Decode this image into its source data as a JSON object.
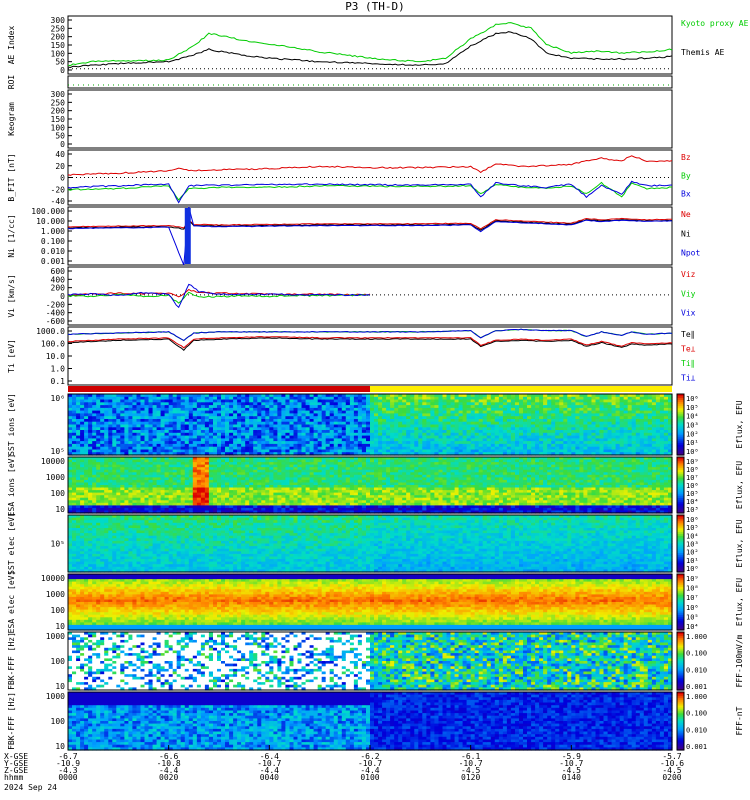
{
  "chart_data": {
    "type": "line",
    "title": "P3 (TH-D)",
    "x_axis": {
      "row_labels": [
        "X-GSE",
        "Y-GSE",
        "Z-GSE",
        "hhmm",
        "2024 Sep 24"
      ],
      "ticks": [
        {
          "x": "-6.7",
          "y": "-10.9",
          "z": "-4.3",
          "t": "0000"
        },
        {
          "x": "-6.6",
          "y": "-10.8",
          "z": "-4.4",
          "t": "0020"
        },
        {
          "x": "-6.4",
          "y": "-10.7",
          "z": "-4.4",
          "t": "0040"
        },
        {
          "x": "-6.2",
          "y": "-10.7",
          "z": "-4.4",
          "t": "0100"
        },
        {
          "x": "-6.1",
          "y": "-10.7",
          "z": "-4.5",
          "t": "0120"
        },
        {
          "x": "-5.9",
          "y": "-10.7",
          "z": "-4.5",
          "t": "0140"
        },
        {
          "x": "-5.7",
          "y": "-10.6",
          "z": "-4.5",
          "t": "0200"
        }
      ]
    },
    "panels": [
      {
        "id": "ae",
        "ylabel": "AE Index",
        "yticks": [
          "300",
          "250",
          "200",
          "150",
          "100",
          "50",
          "0"
        ],
        "ylim": [
          -30,
          300
        ],
        "series": [
          {
            "name": "Kyoto proxy AE",
            "color": "#00cc00",
            "t": [
              0,
              5,
              10,
              15,
              20,
              25,
              28,
              32,
              35,
              40,
              45,
              50,
              55,
              60,
              65,
              70,
              75,
              80,
              85,
              88,
              92,
              95,
              100,
              105,
              110,
              115,
              120
            ],
            "values": [
              20,
              40,
              45,
              45,
              50,
              130,
              200,
              180,
              160,
              140,
              120,
              95,
              80,
              60,
              50,
              40,
              60,
              170,
              250,
              260,
              230,
              140,
              90,
              100,
              90,
              95,
              110
            ]
          },
          {
            "name": "Themis AE",
            "color": "#000000",
            "t": [
              0,
              5,
              10,
              15,
              20,
              25,
              28,
              32,
              35,
              40,
              45,
              50,
              55,
              60,
              65,
              70,
              75,
              80,
              85,
              88,
              92,
              95,
              100,
              105,
              110,
              115,
              120
            ],
            "values": [
              10,
              20,
              30,
              35,
              40,
              80,
              110,
              90,
              75,
              60,
              50,
              40,
              35,
              30,
              25,
              20,
              30,
              130,
              200,
              210,
              170,
              90,
              60,
              55,
              55,
              60,
              70
            ]
          }
        ]
      },
      {
        "id": "roi",
        "ylabel": "ROI"
      },
      {
        "id": "keogram",
        "ylabel": "Keogram",
        "yticks": [
          "300",
          "250",
          "200",
          "150",
          "100",
          "50",
          "0"
        ]
      },
      {
        "id": "bfield",
        "ylabel": "B_FIT [nT]",
        "yticks": [
          "40",
          "20",
          "0",
          "-20",
          "-40"
        ],
        "ylim": [
          -50,
          50
        ],
        "series": [
          {
            "name": "Bz",
            "color": "#dd0000",
            "t": [
              0,
              10,
              20,
              22,
              24,
              30,
              40,
              50,
              60,
              70,
              80,
              82,
              85,
              90,
              95,
              100,
              103,
              106,
              110,
              112,
              115,
              120
            ],
            "values": [
              5,
              8,
              12,
              18,
              12,
              14,
              16,
              20,
              18,
              18,
              20,
              10,
              25,
              20,
              22,
              24,
              30,
              35,
              30,
              40,
              30,
              30
            ]
          },
          {
            "name": "By",
            "color": "#00cc00",
            "t": [
              0,
              10,
              20,
              22,
              24,
              30,
              40,
              50,
              60,
              70,
              80,
              82,
              85,
              90,
              95,
              100,
              103,
              106,
              110,
              112,
              115,
              120
            ],
            "values": [
              -22,
              -20,
              -15,
              -40,
              -20,
              -18,
              -18,
              -15,
              -16,
              -16,
              -15,
              -30,
              -12,
              -18,
              -20,
              -15,
              -30,
              -10,
              -35,
              -10,
              -20,
              -18
            ]
          },
          {
            "name": "Bx",
            "color": "#0000dd",
            "t": [
              0,
              10,
              20,
              22,
              24,
              30,
              40,
              50,
              60,
              70,
              80,
              82,
              85,
              90,
              95,
              100,
              103,
              106,
              110,
              112,
              115,
              120
            ],
            "values": [
              -18,
              -15,
              -12,
              -45,
              -15,
              -14,
              -13,
              -12,
              -13,
              -14,
              -12,
              -35,
              -10,
              -15,
              -18,
              -12,
              -35,
              -15,
              -30,
              -8,
              -15,
              -14
            ]
          }
        ]
      },
      {
        "id": "density",
        "ylabel": "Ni [1/cc]",
        "yticks": [
          "100.000",
          "10.000",
          "1.000",
          "0.100",
          "0.010",
          "0.001"
        ],
        "ylim": [
          -3,
          2
        ],
        "log": true,
        "series": [
          {
            "name": "Ne",
            "color": "#dd0000",
            "t": [
              0,
              10,
              20,
              23,
              24,
              25,
              30,
              40,
              50,
              60,
              70,
              80,
              82,
              85,
              90,
              95,
              100,
              103,
              106,
              110,
              115,
              120
            ],
            "values": [
              0.3,
              0.35,
              0.4,
              0.2,
              0.9,
              0.5,
              0.45,
              0.5,
              0.55,
              0.55,
              0.55,
              0.6,
              0.1,
              0.9,
              0.8,
              0.7,
              0.6,
              1.0,
              0.9,
              1.0,
              0.9,
              0.95
            ]
          },
          {
            "name": "Ni",
            "color": "#000000",
            "t": [
              0,
              10,
              20,
              23,
              24,
              25,
              30,
              40,
              50,
              60,
              70,
              80,
              82,
              85,
              90,
              95,
              100,
              103,
              106,
              110,
              115,
              120
            ],
            "values": [
              0.2,
              0.25,
              0.3,
              0.1,
              0.8,
              0.4,
              0.35,
              0.4,
              0.45,
              0.45,
              0.45,
              0.5,
              0.0,
              0.8,
              0.7,
              0.6,
              0.5,
              0.9,
              0.8,
              0.9,
              0.8,
              0.85
            ]
          },
          {
            "name": "Npot",
            "color": "#0000dd",
            "t": [
              0,
              10,
              20,
              23,
              24,
              25,
              30,
              40,
              50,
              60,
              70,
              80,
              82,
              85,
              90,
              95,
              100,
              103,
              106,
              110,
              115,
              120
            ],
            "values": [
              0.15,
              0.2,
              0.25,
              -3,
              2,
              0.35,
              0.3,
              0.35,
              0.4,
              0.4,
              0.4,
              0.45,
              -0.1,
              0.75,
              0.65,
              0.55,
              0.45,
              0.85,
              0.75,
              0.85,
              0.75,
              0.8
            ]
          }
        ]
      },
      {
        "id": "velocity",
        "ylabel": "Vi [km/s]",
        "yticks": [
          "600",
          "400",
          "200",
          "0",
          "-200",
          "-400",
          "-600"
        ],
        "ylim": [
          -700,
          650
        ],
        "series": [
          {
            "name": "Viz",
            "color": "#dd0000",
            "t": [
              0,
              5,
              10,
              15,
              20,
              22,
              24,
              26,
              30,
              35,
              40,
              45,
              50,
              55,
              60
            ],
            "values": [
              0,
              20,
              40,
              30,
              50,
              -50,
              120,
              60,
              40,
              30,
              20,
              10,
              20,
              10,
              5
            ]
          },
          {
            "name": "Viy",
            "color": "#00cc00",
            "t": [
              0,
              5,
              10,
              15,
              20,
              22,
              24,
              26,
              30,
              35,
              40,
              45,
              50,
              55,
              60
            ],
            "values": [
              -20,
              -40,
              20,
              -30,
              -10,
              -200,
              60,
              -50,
              -40,
              -20,
              -30,
              -10,
              -20,
              -10,
              0
            ]
          },
          {
            "name": "Vix",
            "color": "#0000dd",
            "t": [
              0,
              5,
              10,
              15,
              20,
              22,
              24,
              26,
              30,
              35,
              40,
              45,
              50,
              55,
              60
            ],
            "values": [
              10,
              30,
              -20,
              50,
              20,
              -300,
              250,
              80,
              20,
              10,
              20,
              0,
              10,
              0,
              0
            ]
          }
        ]
      },
      {
        "id": "temperature",
        "ylabel": "Ti [eV]",
        "yticks": [
          "1000.0",
          "100.0",
          "10.0",
          "1.0",
          "0.1"
        ],
        "ylim": [
          -1.2,
          3.6
        ],
        "log": true,
        "series": [
          {
            "name": "Te∥",
            "color": "#000000",
            "t": [
              0,
              10,
              20,
              23,
              25,
              30,
              40,
              50,
              60,
              70,
              80,
              82,
              85,
              90,
              95,
              100,
              103,
              106,
              110,
              112,
              115,
              120
            ],
            "values": [
              2.3,
              2.5,
              2.6,
              1.7,
              2.5,
              2.6,
              2.7,
              2.6,
              2.6,
              2.6,
              2.6,
              2.0,
              2.4,
              2.5,
              2.4,
              2.5,
              2.0,
              2.3,
              1.9,
              2.2,
              2.1,
              2.2
            ]
          },
          {
            "name": "Te⊥",
            "color": "#dd0000",
            "t": [
              0,
              10,
              20,
              23,
              25,
              30,
              40,
              50,
              60,
              70,
              80,
              82,
              85,
              90,
              95,
              100,
              103,
              106,
              110,
              112,
              115,
              120
            ],
            "values": [
              2.4,
              2.6,
              2.7,
              1.9,
              2.6,
              2.7,
              2.8,
              2.7,
              2.7,
              2.7,
              2.7,
              2.1,
              2.5,
              2.6,
              2.5,
              2.6,
              2.1,
              2.4,
              2.0,
              2.3,
              2.2,
              2.3
            ]
          },
          {
            "name": "Ti∥",
            "color": "#00cc00",
            "t": [
              0,
              10,
              20,
              23,
              25,
              30,
              40,
              50,
              60,
              70,
              80,
              82,
              85,
              90,
              95,
              100,
              103,
              106,
              110,
              112,
              115,
              120
            ],
            "values": [
              3.0,
              3.1,
              3.2,
              2.5,
              3.1,
              3.2,
              3.2,
              3.2,
              3.2,
              3.2,
              3.3,
              2.7,
              3.3,
              3.4,
              3.3,
              3.3,
              2.8,
              3.2,
              2.9,
              3.2,
              3.0,
              3.1
            ]
          },
          {
            "name": "Ti⊥",
            "color": "#0000dd",
            "t": [
              0,
              10,
              20,
              23,
              25,
              30,
              40,
              50,
              60,
              70,
              80,
              82,
              85,
              90,
              95,
              100,
              103,
              106,
              110,
              112,
              115,
              120
            ],
            "values": [
              3.0,
              3.1,
              3.2,
              2.5,
              3.1,
              3.2,
              3.2,
              3.2,
              3.2,
              3.2,
              3.3,
              2.7,
              3.3,
              3.4,
              3.3,
              3.3,
              2.8,
              3.2,
              2.9,
              3.2,
              3.0,
              3.1
            ]
          }
        ]
      },
      {
        "id": "sst_ion",
        "type": "heatmap",
        "ylabel": "SST ions [eV]",
        "yticks": [
          "10⁶",
          "10⁵"
        ],
        "cbar_label": "Eflux, EFU",
        "cbar_ticks": [
          "10⁶",
          "10⁵",
          "10⁴",
          "10³",
          "10²",
          "10¹",
          "10⁰"
        ]
      },
      {
        "id": "esa_ion",
        "type": "heatmap",
        "ylabel": "ESA ions [eV]",
        "yticks": [
          "10000",
          "1000",
          "100",
          "10"
        ],
        "cbar_label": "Eflux, EFU",
        "cbar_ticks": [
          "10⁹",
          "10⁸",
          "10⁷",
          "10⁶",
          "10⁵",
          "10⁴",
          "10³"
        ]
      },
      {
        "id": "sst_elec",
        "type": "heatmap",
        "ylabel": "SST elec [eV]",
        "yticks": [
          "10⁵"
        ],
        "cbar_label": "Eflux, EFU",
        "cbar_ticks": [
          "10⁶",
          "10⁵",
          "10⁴",
          "10³",
          "10²",
          "10¹",
          "10⁰"
        ]
      },
      {
        "id": "esa_elec",
        "type": "heatmap",
        "ylabel": "ESA elec [eV]",
        "yticks": [
          "10000",
          "1000",
          "100",
          "10"
        ],
        "cbar_label": "Eflux, EFU",
        "cbar_ticks": [
          "10⁹",
          "10⁸",
          "10⁷",
          "10⁶",
          "10⁵",
          "10⁴"
        ]
      },
      {
        "id": "fbk_e",
        "type": "heatmap",
        "ylabel": "FBK-FFF [Hz]",
        "yticks": [
          "1000",
          "100",
          "10"
        ],
        "cbar_label": "FFF-100mV/m",
        "cbar_ticks": [
          "1.000",
          "0.100",
          "0.010",
          "0.001"
        ]
      },
      {
        "id": "fbk_b",
        "type": "heatmap",
        "ylabel": "FBK-FFF [Hz]",
        "yticks": [
          "1000",
          "100",
          "10"
        ],
        "cbar_label": "FFF-nT",
        "cbar_ticks": [
          "1.000",
          "0.100",
          "0.010",
          "0.001"
        ]
      }
    ],
    "legend": {
      "ae": [
        "Kyoto proxy AE",
        "Themis AE"
      ],
      "bfield": [
        "Bz",
        "By",
        "Bx"
      ],
      "density": [
        "Ne",
        "Ni",
        "Npot"
      ],
      "velocity": [
        "Viz",
        "Viy",
        "Vix"
      ],
      "temperature": [
        "Te∥",
        "Te⊥",
        "Ti∥",
        "Ti⊥"
      ]
    },
    "mode_bar": {
      "segments": [
        {
          "t_end": 60,
          "color": "#d00000"
        },
        {
          "t_end": 120,
          "color": "#ffee00"
        }
      ]
    }
  }
}
